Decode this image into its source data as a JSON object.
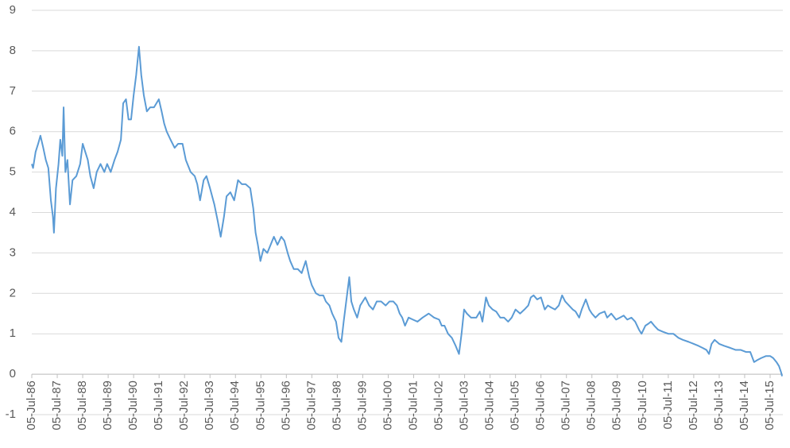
{
  "chart_data": {
    "type": "line",
    "x": [
      1986.5,
      1986.55,
      1986.65,
      1986.75,
      1986.84,
      1986.95,
      1987.05,
      1987.15,
      1987.25,
      1987.33,
      1987.37,
      1987.45,
      1987.55,
      1987.62,
      1987.7,
      1987.75,
      1987.82,
      1987.9,
      1988.0,
      1988.1,
      1988.25,
      1988.4,
      1988.5,
      1988.6,
      1988.7,
      1988.8,
      1988.93,
      1989.05,
      1989.2,
      1989.35,
      1989.46,
      1989.6,
      1989.75,
      1989.87,
      1990.0,
      1990.09,
      1990.2,
      1990.3,
      1990.4,
      1990.5,
      1990.6,
      1990.71,
      1990.8,
      1990.9,
      1991.02,
      1991.15,
      1991.3,
      1991.49,
      1991.6,
      1991.7,
      1991.8,
      1991.95,
      1992.11,
      1992.25,
      1992.42,
      1992.55,
      1992.74,
      1992.9,
      1993.0,
      1993.11,
      1993.25,
      1993.36,
      1993.5,
      1993.67,
      1993.8,
      1993.92,
      1994.05,
      1994.15,
      1994.3,
      1994.45,
      1994.6,
      1994.75,
      1994.9,
      1995.08,
      1995.2,
      1995.29,
      1995.38,
      1995.48,
      1995.6,
      1995.75,
      1995.88,
      1996.01,
      1996.15,
      1996.3,
      1996.42,
      1996.55,
      1996.65,
      1996.79,
      1996.95,
      1997.1,
      1997.26,
      1997.4,
      1997.5,
      1997.66,
      1997.8,
      1997.95,
      1998.05,
      1998.19,
      1998.3,
      1998.45,
      1998.55,
      1998.66,
      1998.75,
      1998.85,
      1998.97,
      1999.05,
      1999.15,
      1999.28,
      1999.4,
      1999.5,
      1999.6,
      1999.75,
      1999.9,
      2000.05,
      2000.22,
      2000.4,
      2000.55,
      2000.7,
      2000.84,
      2000.95,
      2001.05,
      2001.16,
      2001.3,
      2001.47,
      2001.65,
      2001.85,
      2002.09,
      2002.3,
      2002.5,
      2002.6,
      2002.71,
      2002.85,
      2003.0,
      2003.15,
      2003.28,
      2003.38,
      2003.48,
      2003.59,
      2003.75,
      2003.96,
      2004.1,
      2004.2,
      2004.34,
      2004.45,
      2004.6,
      2004.74,
      2004.9,
      2005.05,
      2005.21,
      2005.35,
      2005.5,
      2005.68,
      2005.85,
      2006.0,
      2006.1,
      2006.21,
      2006.35,
      2006.5,
      2006.65,
      2006.77,
      2006.9,
      2007.05,
      2007.2,
      2007.33,
      2007.45,
      2007.6,
      2007.75,
      2007.86,
      2008.0,
      2008.1,
      2008.26,
      2008.4,
      2008.5,
      2008.64,
      2008.8,
      2009.0,
      2009.1,
      2009.26,
      2009.45,
      2009.6,
      2009.75,
      2009.89,
      2010.05,
      2010.2,
      2010.35,
      2010.45,
      2010.6,
      2010.72,
      2010.82,
      2010.95,
      2011.1,
      2011.29,
      2011.5,
      2011.7,
      2011.9,
      2012.07,
      2012.3,
      2012.5,
      2012.69,
      2012.85,
      2013.0,
      2013.1,
      2013.2,
      2013.32,
      2013.5,
      2013.7,
      2013.94,
      2014.15,
      2014.35,
      2014.55,
      2014.72,
      2014.87,
      2015.0,
      2015.15,
      2015.34,
      2015.5,
      2015.62,
      2015.75,
      2015.85,
      2015.93,
      2015.97
    ],
    "series": [
      {
        "color": "#5b9bd5",
        "values": [
          5.2,
          5.1,
          5.5,
          5.7,
          5.9,
          5.6,
          5.3,
          5.1,
          4.3,
          3.9,
          3.5,
          4.6,
          5.2,
          5.8,
          5.4,
          6.6,
          5.0,
          5.3,
          4.2,
          4.8,
          4.9,
          5.2,
          5.7,
          5.5,
          5.3,
          4.9,
          4.6,
          5.0,
          5.2,
          5.0,
          5.2,
          5.0,
          5.3,
          5.5,
          5.8,
          6.7,
          6.8,
          6.3,
          6.3,
          6.9,
          7.4,
          8.1,
          7.4,
          6.9,
          6.5,
          6.6,
          6.6,
          6.8,
          6.5,
          6.2,
          6.0,
          5.8,
          5.6,
          5.7,
          5.7,
          5.3,
          5.0,
          4.9,
          4.7,
          4.3,
          4.8,
          4.9,
          4.6,
          4.2,
          3.8,
          3.4,
          3.9,
          4.4,
          4.5,
          4.3,
          4.8,
          4.7,
          4.7,
          4.6,
          4.1,
          3.5,
          3.2,
          2.8,
          3.1,
          3.0,
          3.2,
          3.4,
          3.2,
          3.4,
          3.3,
          3.0,
          2.8,
          2.6,
          2.6,
          2.5,
          2.8,
          2.4,
          2.2,
          2.0,
          1.95,
          1.95,
          1.8,
          1.7,
          1.5,
          1.3,
          0.9,
          0.8,
          1.3,
          1.8,
          2.4,
          1.8,
          1.6,
          1.4,
          1.7,
          1.8,
          1.9,
          1.7,
          1.6,
          1.8,
          1.8,
          1.7,
          1.8,
          1.8,
          1.7,
          1.5,
          1.4,
          1.2,
          1.4,
          1.35,
          1.3,
          1.4,
          1.5,
          1.4,
          1.35,
          1.2,
          1.2,
          1.0,
          0.9,
          0.7,
          0.5,
          1.0,
          1.6,
          1.5,
          1.4,
          1.4,
          1.55,
          1.3,
          1.9,
          1.7,
          1.6,
          1.55,
          1.4,
          1.4,
          1.3,
          1.4,
          1.6,
          1.5,
          1.6,
          1.7,
          1.9,
          1.95,
          1.85,
          1.9,
          1.6,
          1.7,
          1.65,
          1.6,
          1.7,
          1.95,
          1.8,
          1.7,
          1.6,
          1.55,
          1.4,
          1.6,
          1.85,
          1.6,
          1.5,
          1.4,
          1.5,
          1.55,
          1.4,
          1.5,
          1.35,
          1.4,
          1.45,
          1.35,
          1.4,
          1.3,
          1.1,
          1.0,
          1.2,
          1.25,
          1.3,
          1.2,
          1.1,
          1.05,
          1.0,
          1.0,
          0.9,
          0.85,
          0.8,
          0.75,
          0.7,
          0.65,
          0.6,
          0.5,
          0.75,
          0.85,
          0.75,
          0.7,
          0.65,
          0.6,
          0.6,
          0.55,
          0.55,
          0.3,
          0.35,
          0.4,
          0.45,
          0.45,
          0.4,
          0.3,
          0.2,
          0.05,
          -0.05
        ]
      }
    ],
    "xlim": [
      1986.5,
      2016.0
    ],
    "xticks": [
      {
        "value": 1986.5,
        "label": "05-Jul-86"
      },
      {
        "value": 1987.5,
        "label": "05-Jul-87"
      },
      {
        "value": 1988.5,
        "label": "05-Jul-88"
      },
      {
        "value": 1989.5,
        "label": "05-Jul-89"
      },
      {
        "value": 1990.5,
        "label": "05-Jul-90"
      },
      {
        "value": 1991.5,
        "label": "05-Jul-91"
      },
      {
        "value": 1992.5,
        "label": "05-Jul-92"
      },
      {
        "value": 1993.5,
        "label": "05-Jul-93"
      },
      {
        "value": 1994.5,
        "label": "05-Jul-94"
      },
      {
        "value": 1995.5,
        "label": "05-Jul-95"
      },
      {
        "value": 1996.5,
        "label": "05-Jul-96"
      },
      {
        "value": 1997.5,
        "label": "05-Jul-97"
      },
      {
        "value": 1998.5,
        "label": "05-Jul-98"
      },
      {
        "value": 1999.5,
        "label": "05-Jul-99"
      },
      {
        "value": 2000.5,
        "label": "05-Jul-00"
      },
      {
        "value": 2001.5,
        "label": "05-Jul-01"
      },
      {
        "value": 2002.5,
        "label": "05-Jul-02"
      },
      {
        "value": 2003.5,
        "label": "05-Jul-03"
      },
      {
        "value": 2004.5,
        "label": "05-Jul-04"
      },
      {
        "value": 2005.5,
        "label": "05-Jul-05"
      },
      {
        "value": 2006.5,
        "label": "05-Jul-06"
      },
      {
        "value": 2007.5,
        "label": "05-Jul-07"
      },
      {
        "value": 2008.5,
        "label": "05-Jul-08"
      },
      {
        "value": 2009.5,
        "label": "05-Jul-09"
      },
      {
        "value": 2010.5,
        "label": "05-Jul-10"
      },
      {
        "value": 2011.5,
        "label": "05-Jul-11"
      },
      {
        "value": 2012.5,
        "label": "05-Jul-12"
      },
      {
        "value": 2013.5,
        "label": "05-Jul-13"
      },
      {
        "value": 2014.5,
        "label": "05-Jul-14"
      },
      {
        "value": 2015.5,
        "label": "05-Jul-15"
      }
    ],
    "ylim": [
      -1,
      9
    ],
    "yticks": [
      -1,
      0,
      1,
      2,
      3,
      4,
      5,
      6,
      7,
      8,
      9
    ],
    "grid": true
  }
}
